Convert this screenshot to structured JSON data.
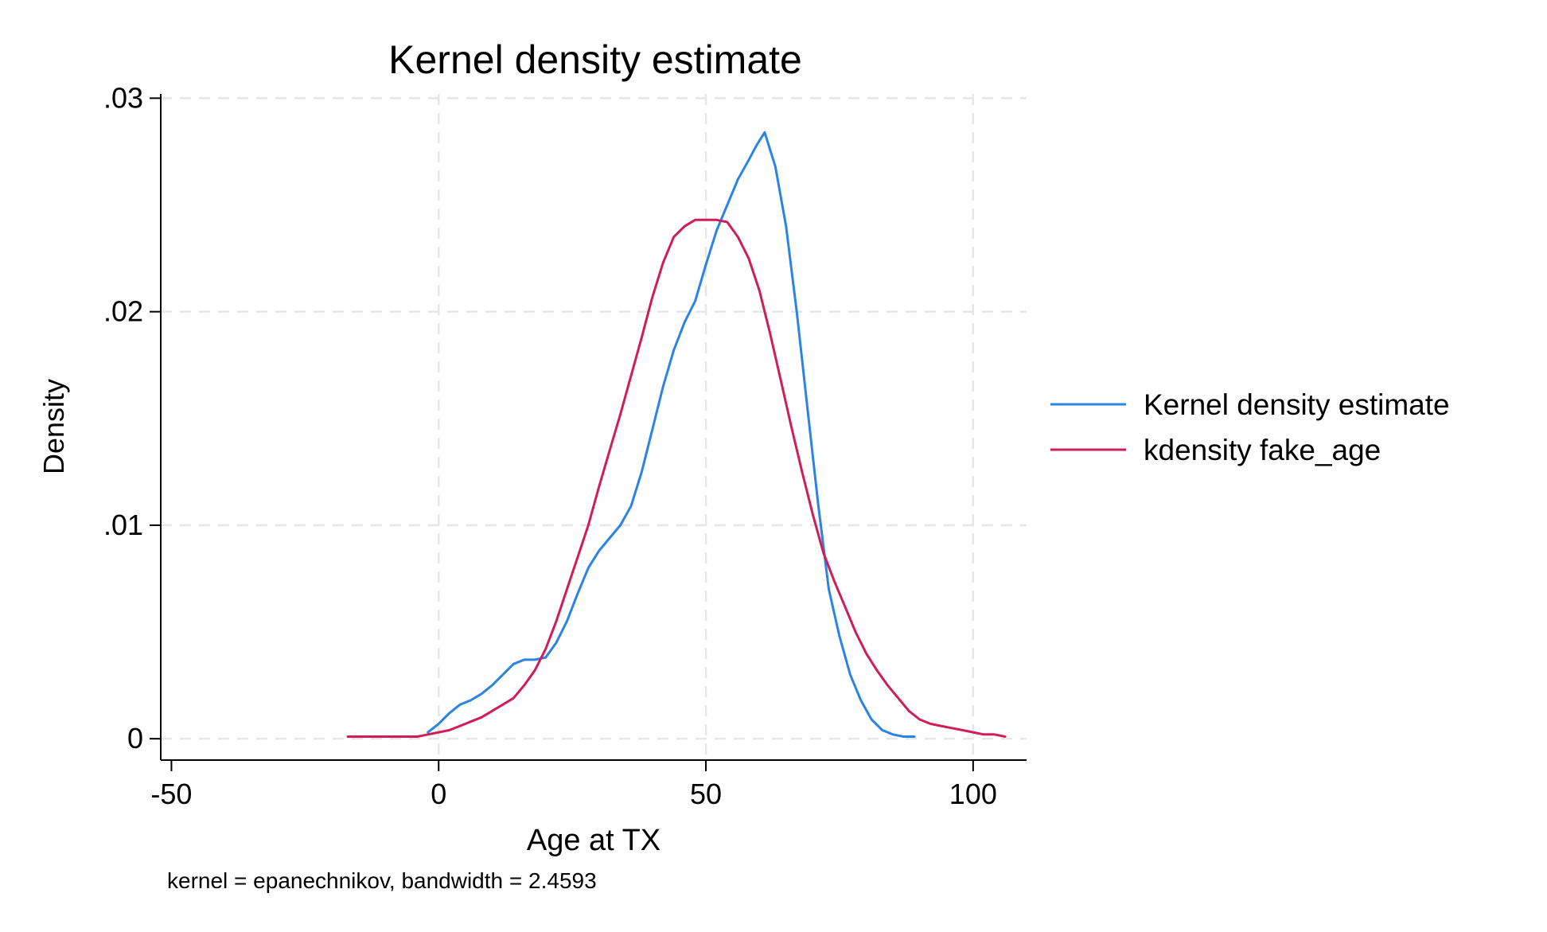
{
  "chart_data": {
    "type": "line",
    "title": "Kernel density estimate",
    "xlabel": "Age at TX",
    "ylabel": "Density",
    "note": "kernel = epanechnikov, bandwidth = 2.4593",
    "xlim": [
      -52,
      110
    ],
    "ylim": [
      -0.001,
      0.0302
    ],
    "xticks": [
      -50,
      0,
      50,
      100
    ],
    "xtick_labels": [
      "-50",
      "0",
      "50",
      "100"
    ],
    "yticks": [
      0,
      0.01,
      0.02,
      0.03
    ],
    "ytick_labels": [
      "0",
      ".01",
      ".02",
      ".03"
    ],
    "grid": true,
    "legend_position": "right",
    "series": [
      {
        "name": "Kernel density estimate",
        "color": "#2b83e6",
        "x": [
          -2,
          0,
          2,
          4,
          6,
          8,
          10,
          12,
          14,
          16,
          18,
          20,
          22,
          24,
          26,
          28,
          30,
          32,
          34,
          36,
          38,
          40,
          42,
          44,
          46,
          48,
          50,
          52,
          54,
          56,
          58,
          59.5,
          61,
          63,
          65,
          67,
          69,
          71,
          73,
          75,
          77,
          79,
          81,
          83,
          85,
          87,
          89
        ],
        "y": [
          0.0003,
          0.0007,
          0.0012,
          0.0016,
          0.0018,
          0.0021,
          0.0025,
          0.003,
          0.0035,
          0.0037,
          0.0037,
          0.0038,
          0.0045,
          0.0055,
          0.0068,
          0.008,
          0.0088,
          0.0094,
          0.01,
          0.0109,
          0.0125,
          0.0145,
          0.0165,
          0.0182,
          0.0195,
          0.0205,
          0.0222,
          0.0238,
          0.025,
          0.0262,
          0.0271,
          0.0278,
          0.0284,
          0.0268,
          0.024,
          0.02,
          0.0155,
          0.011,
          0.007,
          0.0048,
          0.003,
          0.0018,
          0.0009,
          0.0004,
          0.0002,
          0.0001,
          0.0001
        ]
      },
      {
        "name": "kdensity fake_age",
        "color": "#d01c5b",
        "x": [
          -17,
          -12,
          -8,
          -4,
          -2,
          0,
          2,
          4,
          6,
          8,
          10,
          12,
          14,
          16,
          18,
          20,
          22,
          24,
          26,
          28,
          30,
          32,
          34,
          36,
          38,
          40,
          42,
          44,
          46,
          48,
          50,
          52,
          54,
          56,
          58,
          60,
          62,
          64,
          66,
          68,
          70,
          72,
          74,
          76,
          78,
          80,
          82,
          84,
          86,
          88,
          90,
          92,
          94,
          96,
          98,
          100,
          102,
          104,
          106
        ],
        "y": [
          0.0001,
          0.0001,
          0.0001,
          0.0001,
          0.0002,
          0.0003,
          0.0004,
          0.0006,
          0.0008,
          0.001,
          0.0013,
          0.0016,
          0.0019,
          0.0025,
          0.0032,
          0.0042,
          0.0055,
          0.007,
          0.0085,
          0.01,
          0.0118,
          0.0135,
          0.0152,
          0.017,
          0.0188,
          0.0207,
          0.0223,
          0.0235,
          0.024,
          0.0243,
          0.0243,
          0.0243,
          0.0242,
          0.0235,
          0.0225,
          0.021,
          0.019,
          0.0168,
          0.0146,
          0.0125,
          0.0105,
          0.0087,
          0.0074,
          0.0062,
          0.005,
          0.004,
          0.0032,
          0.0025,
          0.0019,
          0.0013,
          0.0009,
          0.0007,
          0.0006,
          0.0005,
          0.0004,
          0.0003,
          0.0002,
          0.0002,
          0.0001
        ]
      }
    ]
  }
}
